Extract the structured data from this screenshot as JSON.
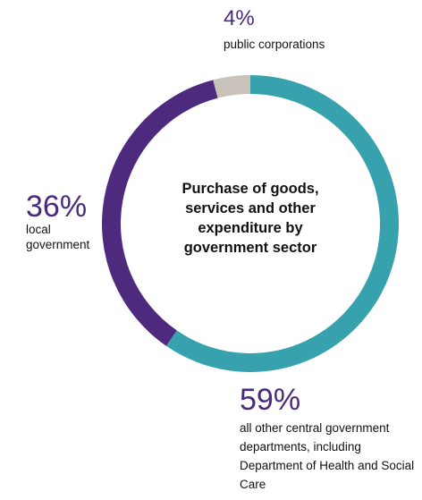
{
  "chart_data": {
    "type": "pie",
    "style": "donut",
    "title": "Purchase of goods, services and other expenditure by government sector",
    "slices": [
      {
        "label": "all other central government departments, including Department of Health and Social Care",
        "value": 59,
        "value_label": "59%",
        "color": "#37a2ae"
      },
      {
        "label": "local government",
        "value": 36,
        "value_label": "36%",
        "color": "#4d2a7e"
      },
      {
        "label": "public corporations",
        "value": 4,
        "value_label": "4%",
        "color": "#c8c3ba"
      }
    ]
  }
}
